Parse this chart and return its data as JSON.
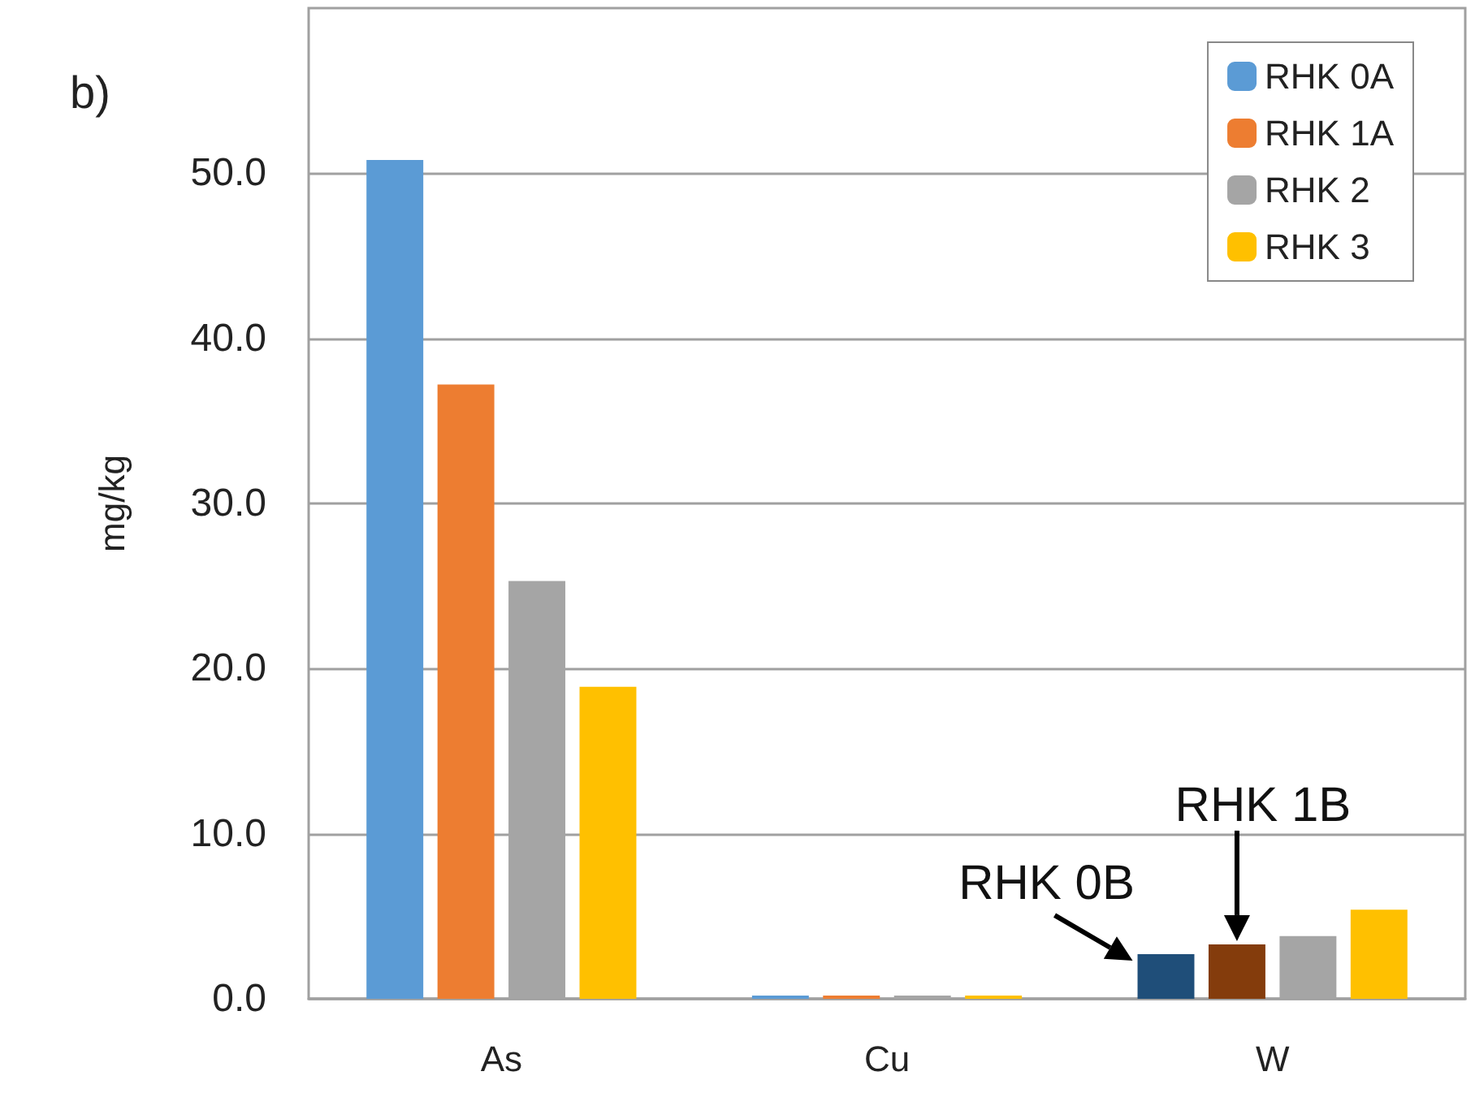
{
  "chart_data": {
    "type": "bar",
    "title": "b)",
    "ylabel": "mg/kg",
    "categories": [
      "As",
      "Cu",
      "W"
    ],
    "series": [
      {
        "name": "RHK 0A",
        "color": "#5b9bd5",
        "colors": [
          "#5b9bd5",
          "#5b9bd5",
          "#1f4e79"
        ],
        "values": [
          50.8,
          0.2,
          2.7
        ]
      },
      {
        "name": "RHK 1A",
        "color": "#ed7d31",
        "colors": [
          "#ed7d31",
          "#ed7d31",
          "#843c0c"
        ],
        "values": [
          37.2,
          0.2,
          3.3
        ]
      },
      {
        "name": "RHK 2",
        "color": "#a5a5a5",
        "values": [
          25.3,
          0.2,
          3.8
        ]
      },
      {
        "name": "RHK 3",
        "color": "#ffc000",
        "values": [
          18.9,
          0.2,
          5.4
        ]
      }
    ],
    "annotations": [
      {
        "text": "RHK 0B",
        "x": "W",
        "y": 2.7
      },
      {
        "text": "RHK 1B",
        "x": "W",
        "y": 3.3
      }
    ],
    "ylim": [
      0,
      60
    ],
    "yticks": [
      {
        "value": 0,
        "label": "0.0"
      },
      {
        "value": 10,
        "label": "10.0"
      },
      {
        "value": 20,
        "label": "20.0"
      },
      {
        "value": 30,
        "label": "30.0"
      },
      {
        "value": 40,
        "label": "40.0"
      },
      {
        "value": 50,
        "label": "50.0"
      }
    ],
    "grid": "y",
    "legend": "top right"
  }
}
